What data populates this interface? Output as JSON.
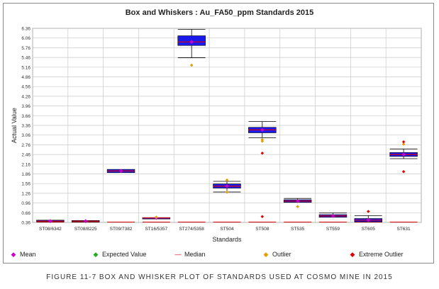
{
  "chart_data": {
    "type": "box",
    "title": "Box and Whiskers : Au_FA50_ppm Standards 2015",
    "xlabel": "Standards",
    "ylabel": "Actual Value",
    "ylim": [
      0.36,
      6.36
    ],
    "y_ticks": [
      "0.36",
      "0.66",
      "0.96",
      "1.26",
      "1.56",
      "1.86",
      "2.16",
      "2.46",
      "2.76",
      "3.06",
      "3.36",
      "3.66",
      "3.96",
      "4.26",
      "4.56",
      "4.86",
      "5.16",
      "5.46",
      "5.76",
      "6.06",
      "6.36"
    ],
    "grid": true,
    "categories": [
      "ST08/6342",
      "ST08/8225",
      "ST09/7382",
      "ST16/5357",
      "ST274/5358",
      "ST504",
      "ST508",
      "ST535",
      "ST559",
      "ST605",
      "ST631"
    ],
    "boxes": [
      {
        "q1": 0.38,
        "q3": 0.43,
        "median": 0.4,
        "mean": 0.4,
        "whisker_low": null,
        "whisker_high": null,
        "outliers": [],
        "extreme_outliers": []
      },
      {
        "q1": 0.38,
        "q3": 0.42,
        "median": 0.4,
        "mean": 0.4,
        "whisker_low": null,
        "whisker_high": null,
        "outliers": [],
        "extreme_outliers": []
      },
      {
        "q1": 1.9,
        "q3": 2.0,
        "median": 1.95,
        "mean": 1.95,
        "whisker_low": null,
        "whisker_high": null,
        "outliers": [],
        "extreme_outliers": []
      },
      {
        "q1": 0.48,
        "q3": 0.51,
        "median": 0.5,
        "mean": 0.5,
        "whisker_low": null,
        "whisker_high": null,
        "outliers": [
          0.52
        ],
        "extreme_outliers": []
      },
      {
        "q1": 5.83,
        "q3": 6.13,
        "median": 5.94,
        "mean": 5.94,
        "whisker_low": 5.45,
        "whisker_high": 6.33,
        "outliers": [
          5.22
        ],
        "extreme_outliers": []
      },
      {
        "q1": 1.42,
        "q3": 1.55,
        "median": 1.48,
        "mean": 1.48,
        "whisker_low": 1.3,
        "whisker_high": 1.63,
        "outliers": [
          1.3,
          1.67
        ],
        "extreme_outliers": []
      },
      {
        "q1": 3.13,
        "q3": 3.3,
        "median": 3.22,
        "mean": 3.22,
        "whisker_low": 2.98,
        "whisker_high": 3.48,
        "outliers": [
          2.92,
          2.87
        ],
        "extreme_outliers": [
          2.5,
          0.54
        ]
      },
      {
        "q1": 0.98,
        "q3": 1.06,
        "median": 1.02,
        "mean": 1.02,
        "whisker_low": null,
        "whisker_high": 1.1,
        "outliers": [
          0.85
        ],
        "extreme_outliers": []
      },
      {
        "q1": 0.52,
        "q3": 0.6,
        "median": 0.56,
        "mean": 0.56,
        "whisker_low": null,
        "whisker_high": 0.65,
        "outliers": [],
        "extreme_outliers": []
      },
      {
        "q1": 0.38,
        "q3": 0.48,
        "median": 0.43,
        "mean": 0.43,
        "whisker_low": null,
        "whisker_high": 0.57,
        "outliers": [],
        "extreme_outliers": [
          0.7
        ]
      },
      {
        "q1": 2.4,
        "q3": 2.52,
        "median": 2.46,
        "mean": 2.46,
        "whisker_low": 2.33,
        "whisker_high": 2.63,
        "outliers": [
          2.78
        ],
        "extreme_outliers": [
          2.85,
          1.93
        ]
      }
    ],
    "baseline_medians_y": 0.37,
    "legend": [
      {
        "label": "Mean",
        "symbol": "◆",
        "color": "#cc00cc"
      },
      {
        "label": "Expected Value",
        "symbol": "◆",
        "color": "#22aa22"
      },
      {
        "label": "Median",
        "symbol": "—",
        "color": "#dd0000"
      },
      {
        "label": "Outlier",
        "symbol": "◆",
        "color": "#e0a000"
      },
      {
        "label": "Extreme Outlier",
        "symbol": "◆",
        "color": "#dd0000"
      }
    ],
    "legend_position": "bottom",
    "colors": {
      "box": "#1a1aee",
      "median": "#dd0000",
      "mean": "#cc00cc",
      "outlier": "#e0a000",
      "extreme": "#dd0000",
      "whisker": "#000000",
      "grid": "#c8c8c8"
    }
  },
  "caption": "FIGURE 11-7 BOX AND WHISKER PLOT OF STANDARDS USED AT COSMO MINE IN 2015"
}
